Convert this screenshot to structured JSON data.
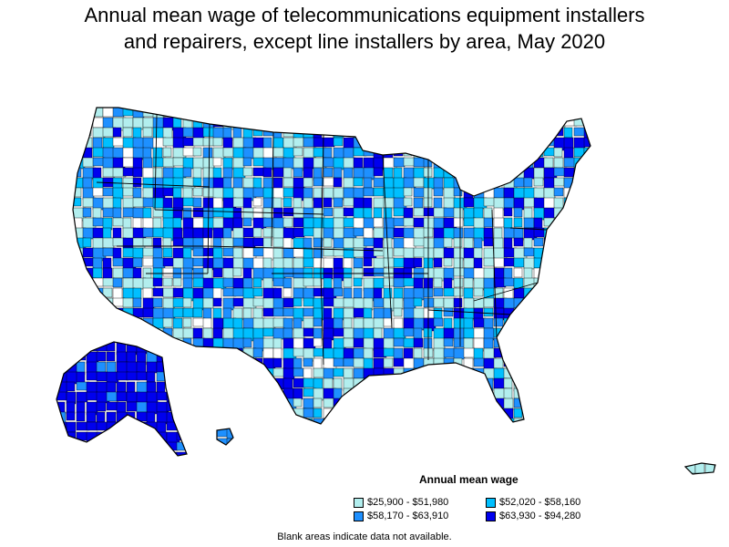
{
  "title_lines": [
    "Annual mean wage of telecommunications equipment installers",
    "and repairers, except line installers by area, May 2020"
  ],
  "legend": {
    "title": "Annual mean wage",
    "items": [
      {
        "label": "$25,900 - $51,980",
        "color": "#b2eeee"
      },
      {
        "label": "$52,020 - $58,160",
        "color": "#00bfff"
      },
      {
        "label": "$58,170 - $63,910",
        "color": "#1e90ff"
      },
      {
        "label": "$63,930 - $94,280",
        "color": "#0000ee"
      }
    ]
  },
  "footnote": "Blank areas indicate data not available.",
  "colors": {
    "outline": "#000000",
    "blank": "#ffffff"
  }
}
